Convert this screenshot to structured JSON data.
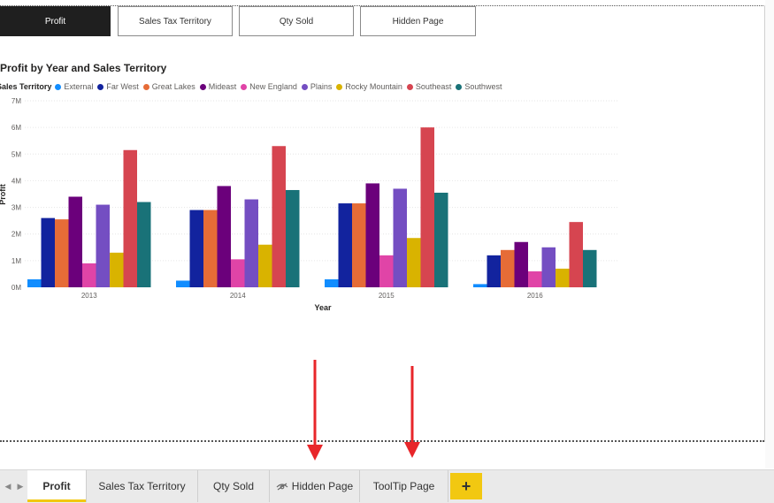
{
  "nav_buttons": [
    {
      "label": "Profit",
      "active": true
    },
    {
      "label": "Sales Tax Territory",
      "active": false
    },
    {
      "label": "Qty Sold",
      "active": false
    },
    {
      "label": "Hidden Page",
      "active": false
    }
  ],
  "chart": {
    "title": "Profit by Year and Sales Territory",
    "legend_title": "Sales Territory"
  },
  "chart_data": {
    "type": "bar",
    "title": "Profit by Year and Sales Territory",
    "xlabel": "Year",
    "ylabel": "Profit",
    "categories": [
      "2013",
      "2014",
      "2015",
      "2016"
    ],
    "yticks": [
      "0M",
      "1M",
      "2M",
      "3M",
      "4M",
      "5M",
      "6M",
      "7M"
    ],
    "ylim": [
      0,
      7
    ],
    "grid": true,
    "legend_position": "top-left",
    "series": [
      {
        "name": "External",
        "color": "#118DFF",
        "values": [
          0.3,
          0.25,
          0.3,
          0.12
        ]
      },
      {
        "name": "Far West",
        "color": "#12239E",
        "values": [
          2.6,
          2.9,
          3.15,
          1.2
        ]
      },
      {
        "name": "Great Lakes",
        "color": "#E66C37",
        "values": [
          2.55,
          2.9,
          3.15,
          1.4
        ]
      },
      {
        "name": "Mideast",
        "color": "#6B007B",
        "values": [
          3.4,
          3.8,
          3.9,
          1.7
        ]
      },
      {
        "name": "New England",
        "color": "#E044A7",
        "values": [
          0.9,
          1.05,
          1.2,
          0.6
        ]
      },
      {
        "name": "Plains",
        "color": "#744EC2",
        "values": [
          3.1,
          3.3,
          3.7,
          1.5
        ]
      },
      {
        "name": "Rocky Mountain",
        "color": "#D9B300",
        "values": [
          1.3,
          1.6,
          1.85,
          0.7
        ]
      },
      {
        "name": "Southeast",
        "color": "#D64550",
        "values": [
          5.15,
          5.3,
          6.0,
          2.45
        ]
      },
      {
        "name": "Southwest",
        "color": "#197278",
        "values": [
          3.2,
          3.65,
          3.55,
          1.4
        ]
      }
    ]
  },
  "tabs": [
    {
      "label": "Profit",
      "active": true
    },
    {
      "label": "Sales Tax Territory",
      "active": false
    },
    {
      "label": "Qty Sold",
      "active": false
    },
    {
      "label": "Hidden Page",
      "active": false,
      "icon": "hidden-eye-icon"
    },
    {
      "label": "ToolTip Page",
      "active": false
    }
  ],
  "tab_nav": {
    "prev": "◀",
    "next": "▶"
  },
  "add_tab_label": "+",
  "arrow_color": "#e8262a"
}
